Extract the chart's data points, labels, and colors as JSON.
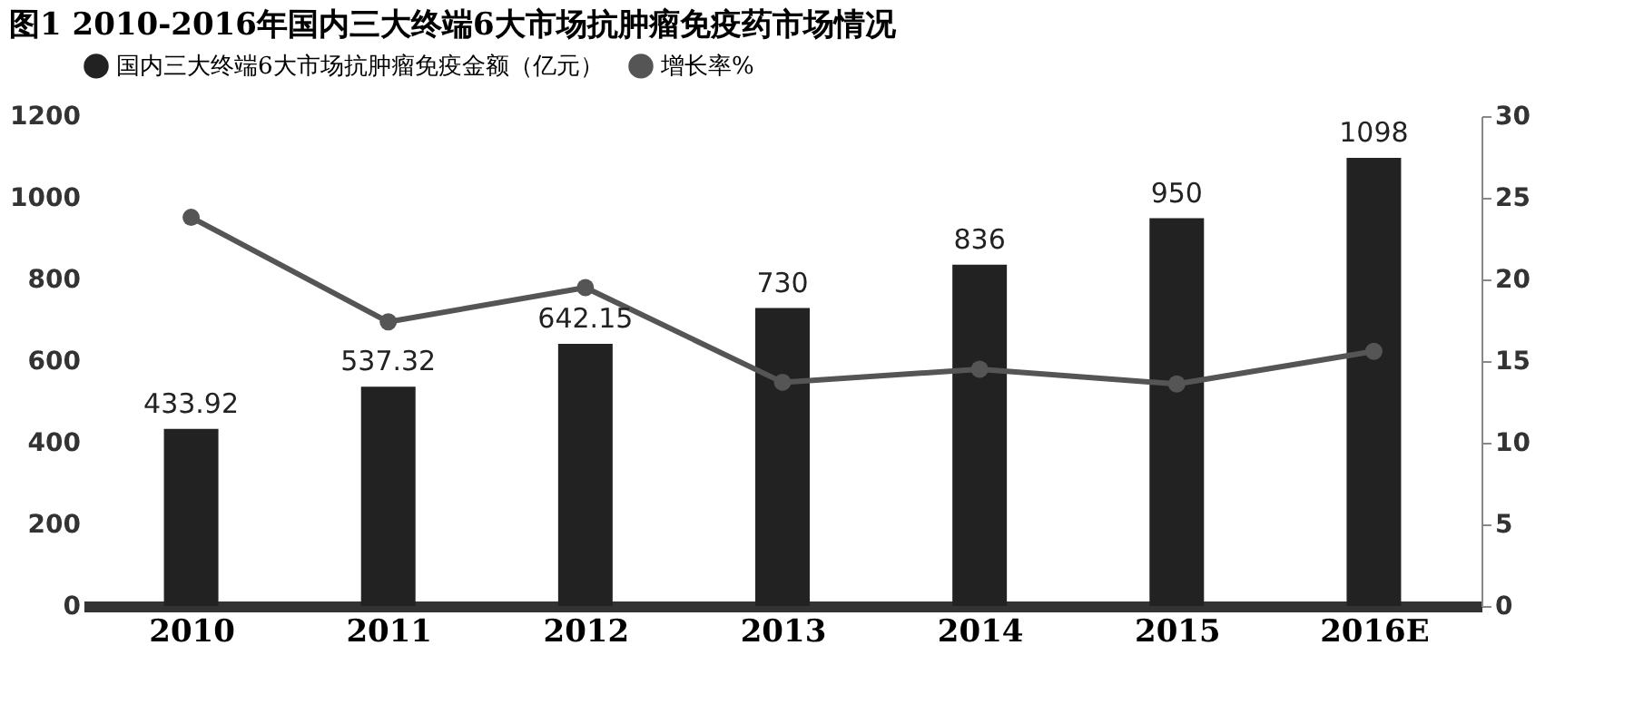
{
  "chart_data": {
    "type": "bar",
    "title": "图1 2010-2016年国内三大终端6大市场抗肿瘤免疫药市场情况",
    "categories": [
      "2010",
      "2011",
      "2012",
      "2013",
      "2014",
      "2015",
      "2016E"
    ],
    "series": [
      {
        "name": "国内三大终端6大市场抗肿瘤免疫金额（亿元）",
        "color": "#222222",
        "values": [
          433.92,
          537.32,
          642.15,
          730,
          836,
          950,
          1098
        ],
        "value_labels": [
          "433.92",
          "537.32",
          "642.15",
          "730",
          "836",
          "950",
          "1098"
        ]
      },
      {
        "name": "增长率%",
        "type": "line",
        "axis": "y2",
        "color": "#555555",
        "marker": "circle",
        "values": [
          23.8,
          17.4,
          19.5,
          13.7,
          14.5,
          13.6,
          15.6
        ]
      }
    ],
    "ylim": [
      0,
      1200
    ],
    "yticks": [
      0,
      200,
      400,
      600,
      800,
      1000,
      1200
    ],
    "y2lim": [
      0,
      30
    ],
    "y2ticks": [
      0,
      5,
      10,
      15,
      20,
      25,
      30
    ],
    "grid": false,
    "legend": "top"
  }
}
